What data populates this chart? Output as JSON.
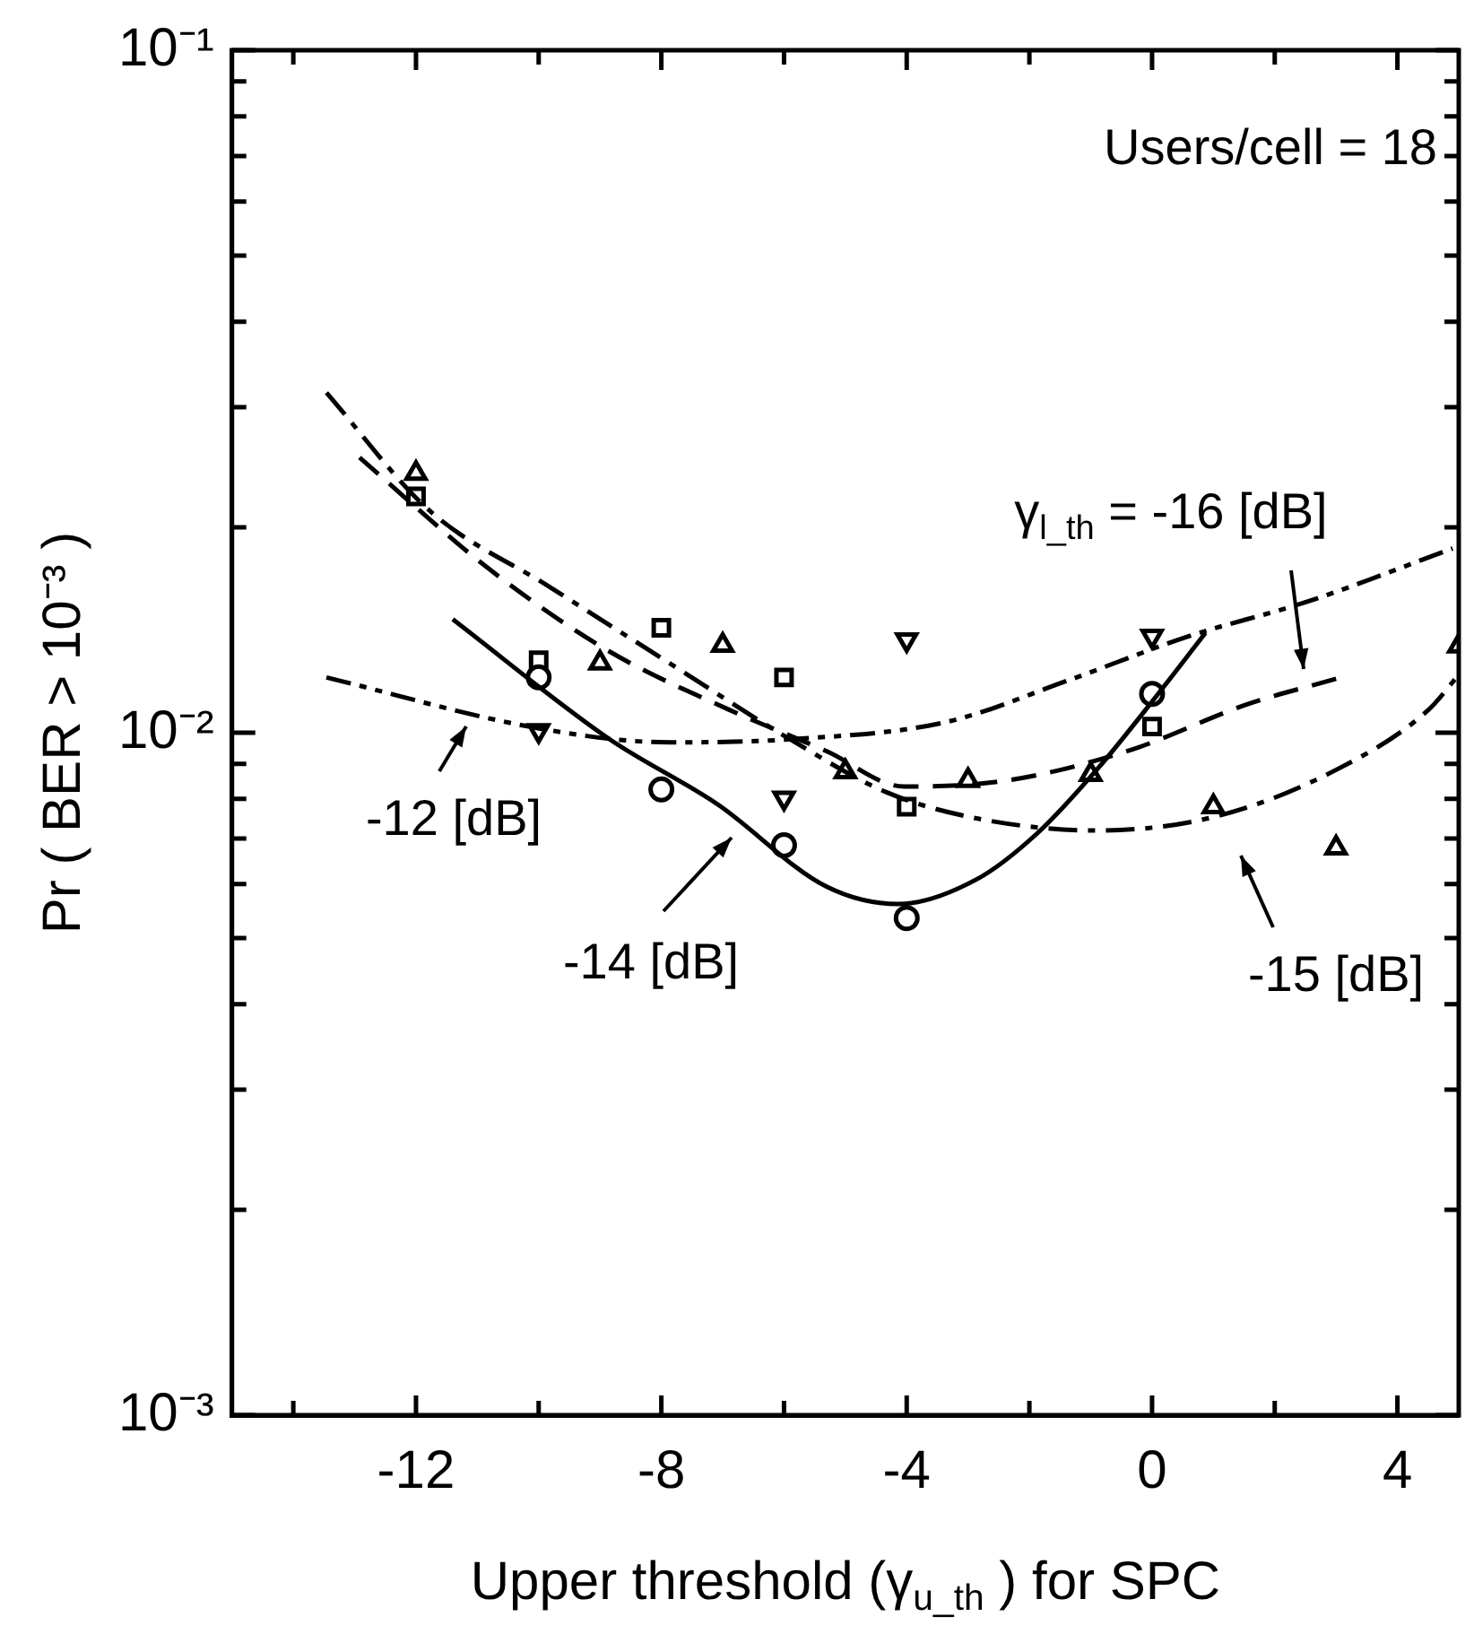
{
  "chart_data": {
    "type": "scatter",
    "xlabel": "Upper threshold (γ$_{u_th}$ ) for SPC",
    "ylabel": "Pr ( BER > 10⁻³ )",
    "xlim": [
      -15,
      5
    ],
    "xticks": [
      {
        "value": -14,
        "label": null
      },
      -12,
      {
        "value": -10,
        "label": null
      },
      -8,
      {
        "value": -6,
        "label": null
      },
      -4,
      {
        "value": -2,
        "label": null
      },
      0,
      {
        "value": 2,
        "label": null
      },
      4
    ],
    "ylim": [
      0.001,
      0.1
    ],
    "log": "y",
    "yticks": [
      {
        "value": 0.001,
        "label": "10⁻³"
      },
      {
        "value": 0.002,
        "label": null
      },
      {
        "value": 0.003,
        "label": null
      },
      {
        "value": 0.004,
        "label": null
      },
      {
        "value": 0.005,
        "label": null
      },
      {
        "value": 0.006,
        "label": null
      },
      {
        "value": 0.007,
        "label": null
      },
      {
        "value": 0.008,
        "label": null
      },
      {
        "value": 0.009,
        "label": null
      },
      {
        "value": 0.01,
        "label": "10⁻²"
      },
      {
        "value": 0.02,
        "label": null
      },
      {
        "value": 0.03,
        "label": null
      },
      {
        "value": 0.04,
        "label": null
      },
      {
        "value": 0.05,
        "label": null
      },
      {
        "value": 0.06,
        "label": null
      },
      {
        "value": 0.07,
        "label": null
      },
      {
        "value": 0.08,
        "label": null
      },
      {
        "value": 0.09,
        "label": null
      },
      {
        "value": 0.1,
        "label": "10⁻¹"
      }
    ],
    "grid": false,
    "legend": false,
    "series": [
      {
        "type": "line",
        "color": "#000000",
        "marker": "none",
        "line_style": "dashdotdot",
        "x": [
          -13.46,
          -10.03,
          -7.87,
          -5.9,
          -3.35,
          -1.39,
          0.58,
          2.54,
          4.9
        ],
        "values": [
          0.01205,
          0.01016,
          0.00968,
          0.00978,
          0.01037,
          0.01191,
          0.01383,
          0.01557,
          0.01862
        ]
      },
      {
        "type": "line",
        "color": "#000000",
        "marker": "none",
        "line_style": "solid",
        "x": [
          -11.4,
          -8.85,
          -7.08,
          -5.31,
          -4.14,
          -2.87,
          -1.88,
          -0.89,
          -0.11,
          0.87
        ],
        "values": [
          0.01466,
          0.00979,
          0.00785,
          0.00595,
          0.00561,
          0.00609,
          0.00711,
          0.00885,
          0.01079,
          0.014
        ]
      },
      {
        "type": "line",
        "color": "#000000",
        "marker": "none",
        "line_style": "dashdot",
        "x": [
          -13.46,
          -11.79,
          -9.83,
          -7.87,
          -5.9,
          -4.33,
          -2.86,
          -0.9,
          1.07,
          3.03,
          4.5,
          5
        ],
        "values": [
          0.0315,
          0.0212,
          0.01637,
          0.01265,
          0.00978,
          0.00818,
          0.00749,
          0.00719,
          0.00755,
          0.00885,
          0.01079,
          0.01216
        ]
      },
      {
        "type": "line",
        "color": "#000000",
        "marker": "none",
        "line_style": "dashed",
        "x": [
          -12.92,
          -10.81,
          -8.85,
          -6.88,
          -5.31,
          -4.04,
          -2.37,
          -0.4,
          1.56,
          3.08
        ],
        "values": [
          0.0253,
          0.01738,
          0.01316,
          0.01079,
          0.0094,
          0.00834,
          0.00851,
          0.0094,
          0.01101,
          0.01205
        ]
      },
      {
        "color": "#000000",
        "marker": "circle",
        "x": [
          -10,
          -8,
          -6,
          -4,
          0
        ],
        "values": [
          0.01205,
          0.00826,
          0.00684,
          0.00535,
          0.0114
        ]
      },
      {
        "color": "#000000",
        "marker": "square",
        "x": [
          -12,
          -10,
          -8,
          -6,
          -4,
          0
        ],
        "values": [
          0.0222,
          0.01277,
          0.01425,
          0.01205,
          0.00779,
          0.01021
        ]
      },
      {
        "color": "#000000",
        "marker": "triangle",
        "x": [
          -12,
          -9,
          -7,
          -5,
          -3,
          -1,
          1,
          3,
          5
        ],
        "values": [
          0.024,
          0.01265,
          0.01343,
          0.00877,
          0.00851,
          0.00869,
          0.00779,
          0.00678,
          0.0134
        ]
      },
      {
        "color": "#000000",
        "marker": "triangle-down",
        "x": [
          -10,
          -6,
          -4,
          0
        ],
        "values": [
          0.01007,
          0.00802,
          0.01368,
          0.01384
        ]
      }
    ],
    "annotations": [
      "Users/cell = 18",
      "γ$_{l_th}$ = -16 [dB]",
      "-12 [dB]",
      "-14 [dB]",
      "-15 [dB]"
    ]
  }
}
